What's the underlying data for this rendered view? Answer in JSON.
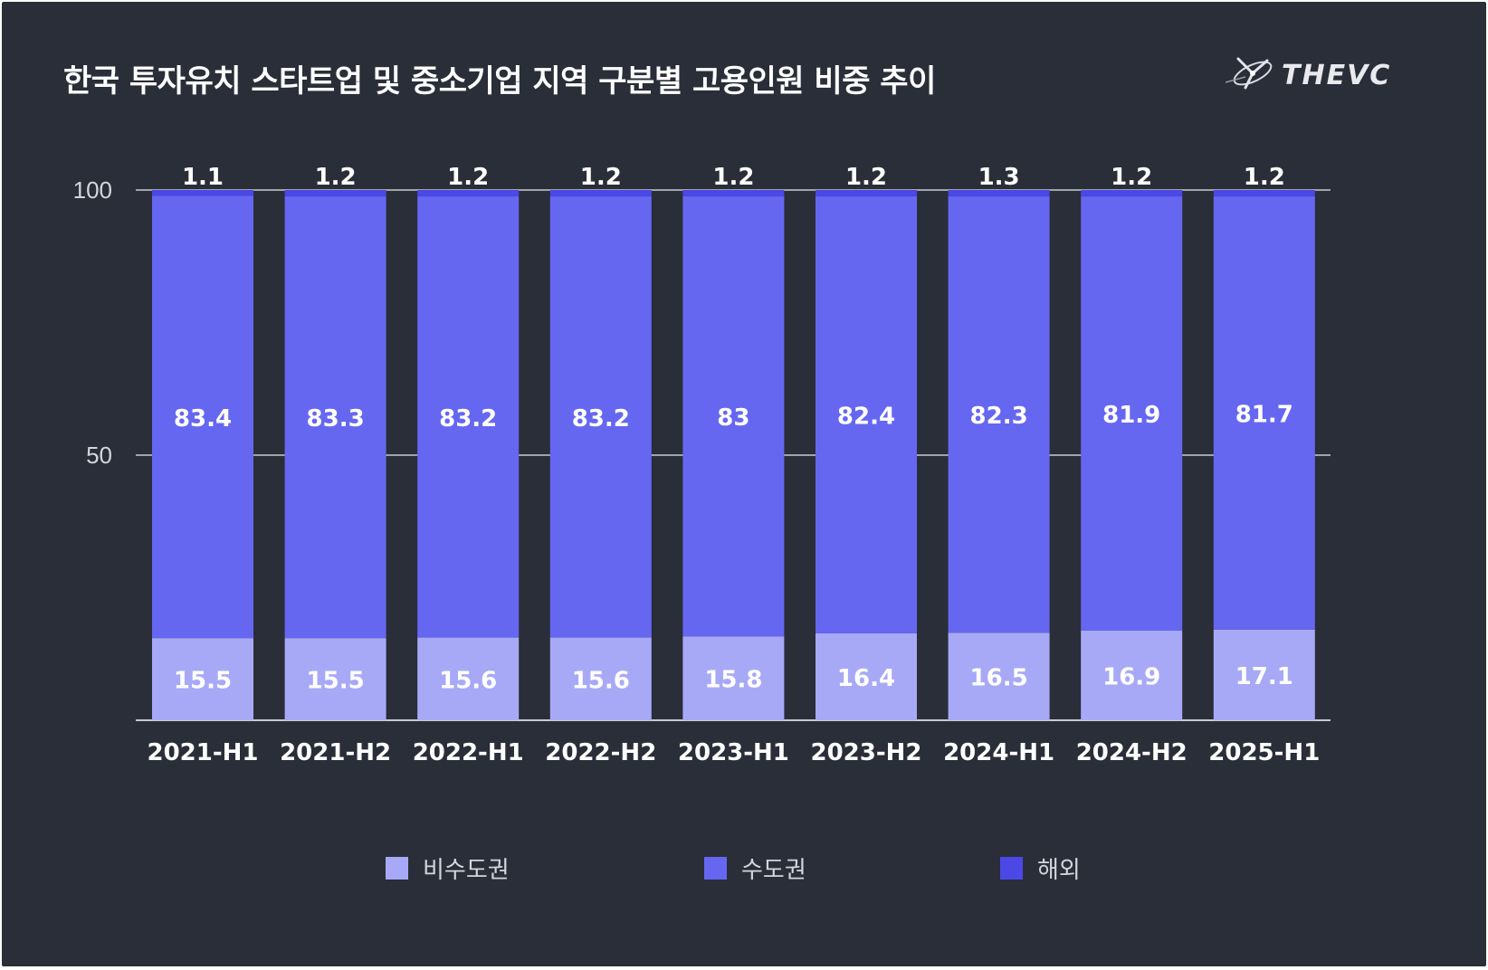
{
  "title": "한국 투자유치 스타트업 및 중소기업 지역 구분별 고용인원 비중 추이",
  "logo": {
    "text": "THEVC",
    "icon": "thevc-orbit-logo-icon"
  },
  "colors": {
    "background": "#2a2e38",
    "non_capital": "#a8a9f6",
    "capital": "#6667f1",
    "overseas": "#4b48e6",
    "grid": "#c9cbd2"
  },
  "chart_data": {
    "type": "bar",
    "stacked": true,
    "title": "한국 투자유치 스타트업 및 중소기업 지역 구분별 고용인원 비중 추이",
    "xlabel": "",
    "ylabel": "",
    "ylim": [
      0,
      100
    ],
    "yticks": [
      50,
      100
    ],
    "grid": true,
    "legend_position": "bottom",
    "categories": [
      "2021-H1",
      "2021-H2",
      "2022-H1",
      "2022-H2",
      "2023-H1",
      "2023-H2",
      "2024-H1",
      "2024-H2",
      "2025-H1"
    ],
    "series": [
      {
        "name": "비수도권",
        "color": "#a8a9f6",
        "values": [
          15.5,
          15.5,
          15.6,
          15.6,
          15.8,
          16.4,
          16.5,
          16.9,
          17.1
        ]
      },
      {
        "name": "수도권",
        "color": "#6667f1",
        "values": [
          83.4,
          83.3,
          83.2,
          83.2,
          83,
          82.4,
          82.3,
          81.9,
          81.7
        ]
      },
      {
        "name": "해외",
        "color": "#4b48e6",
        "values": [
          1.1,
          1.2,
          1.2,
          1.2,
          1.2,
          1.2,
          1.3,
          1.2,
          1.2
        ]
      }
    ]
  }
}
